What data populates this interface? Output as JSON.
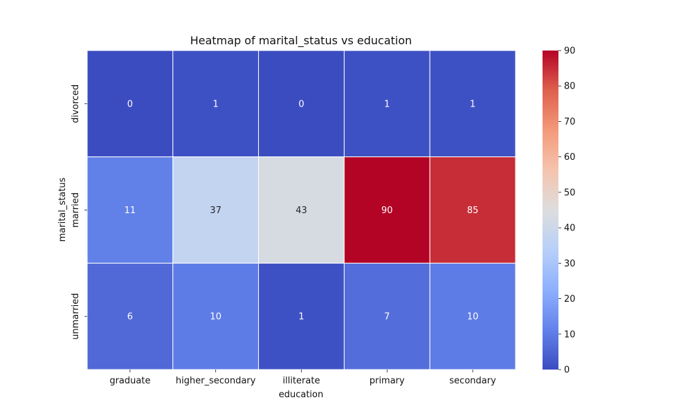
{
  "chart_data": {
    "type": "heatmap",
    "title": "Heatmap of marital_status vs education",
    "xlabel": "education",
    "ylabel": "marital_status",
    "x_categories": [
      "graduate",
      "higher_secondary",
      "illiterate",
      "primary",
      "secondary"
    ],
    "y_categories": [
      "divorced",
      "married",
      "unmarried"
    ],
    "values": [
      [
        0,
        1,
        0,
        1,
        1
      ],
      [
        11,
        37,
        43,
        90,
        85
      ],
      [
        6,
        10,
        1,
        7,
        10
      ]
    ],
    "colorbar": {
      "min": 0,
      "max": 90,
      "ticks": [
        0,
        10,
        20,
        30,
        40,
        50,
        60,
        70,
        80,
        90
      ]
    },
    "colormap": "coolwarm",
    "annotations": true
  }
}
